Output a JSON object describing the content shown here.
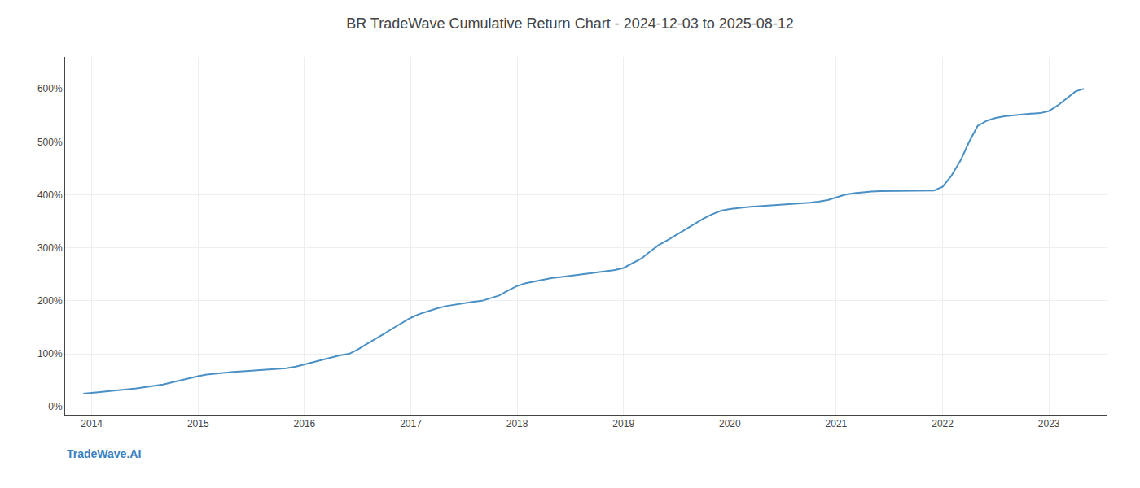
{
  "chart_data": {
    "type": "line",
    "title": "BR TradeWave Cumulative Return Chart - 2024-12-03 to 2025-08-12",
    "annotations": [
      {
        "text": "TradeWave.AI",
        "color": "#3a7fc1"
      }
    ],
    "color": "#4a90c4",
    "grid": true,
    "xlim": [
      2013.75,
      2023.55
    ],
    "xticks": [
      2014,
      2015,
      2016,
      2017,
      2018,
      2019,
      2020,
      2021,
      2022,
      2023
    ],
    "ylim": [
      -15,
      660
    ],
    "yticks": [
      {
        "value": 0,
        "label": "0%"
      },
      {
        "value": 100,
        "label": "100%"
      },
      {
        "value": 200,
        "label": "200%"
      },
      {
        "value": 300,
        "label": "300%"
      },
      {
        "value": 400,
        "label": "400%"
      },
      {
        "value": 500,
        "label": "500%"
      },
      {
        "value": 600,
        "label": "600%"
      }
    ],
    "x": [
      2013.92,
      2014.0,
      2014.08,
      2014.17,
      2014.25,
      2014.33,
      2014.42,
      2014.5,
      2014.58,
      2014.67,
      2014.75,
      2014.83,
      2014.92,
      2015.0,
      2015.08,
      2015.17,
      2015.25,
      2015.33,
      2015.42,
      2015.5,
      2015.58,
      2015.67,
      2015.75,
      2015.83,
      2015.92,
      2016.0,
      2016.08,
      2016.17,
      2016.25,
      2016.33,
      2016.42,
      2016.5,
      2016.58,
      2016.67,
      2016.75,
      2016.83,
      2016.92,
      2017.0,
      2017.08,
      2017.17,
      2017.25,
      2017.33,
      2017.42,
      2017.5,
      2017.58,
      2017.67,
      2017.75,
      2017.83,
      2017.92,
      2018.0,
      2018.08,
      2018.17,
      2018.25,
      2018.33,
      2018.42,
      2018.5,
      2018.58,
      2018.67,
      2018.75,
      2018.83,
      2018.92,
      2019.0,
      2019.08,
      2019.17,
      2019.25,
      2019.33,
      2019.42,
      2019.5,
      2019.58,
      2019.67,
      2019.75,
      2019.83,
      2019.92,
      2020.0,
      2020.08,
      2020.17,
      2020.25,
      2020.33,
      2020.42,
      2020.5,
      2020.58,
      2020.67,
      2020.75,
      2020.83,
      2020.92,
      2021.0,
      2021.08,
      2021.17,
      2021.25,
      2021.33,
      2021.42,
      2021.5,
      2021.58,
      2021.67,
      2021.75,
      2021.83,
      2021.92,
      2022.0,
      2022.08,
      2022.17,
      2022.25,
      2022.33,
      2022.42,
      2022.5,
      2022.58,
      2022.67,
      2022.75,
      2022.83,
      2022.92,
      2023.0,
      2023.08,
      2023.17,
      2023.25,
      2023.33
    ],
    "values": [
      25,
      27,
      28,
      30,
      32,
      33,
      35,
      37,
      39,
      42,
      46,
      50,
      54,
      58,
      61,
      63,
      65,
      66,
      67,
      68,
      69,
      70,
      71,
      73,
      76,
      80,
      84,
      88,
      93,
      97,
      100,
      108,
      118,
      128,
      138,
      148,
      158,
      168,
      175,
      181,
      186,
      190,
      193,
      196,
      198,
      200,
      205,
      210,
      220,
      228,
      233,
      237,
      240,
      243,
      245,
      247,
      249,
      251,
      253,
      255,
      258,
      262,
      270,
      280,
      293,
      305,
      315,
      325,
      335,
      345,
      355,
      363,
      370,
      373,
      375,
      377,
      378,
      379,
      380,
      381,
      382,
      383,
      385,
      387,
      390,
      395,
      400,
      403,
      405,
      406,
      407,
      407,
      407,
      407,
      408,
      408,
      408,
      415,
      435,
      465,
      500,
      530,
      540,
      545,
      548,
      550,
      552,
      553,
      554,
      558,
      568,
      582,
      595,
      600
    ]
  }
}
